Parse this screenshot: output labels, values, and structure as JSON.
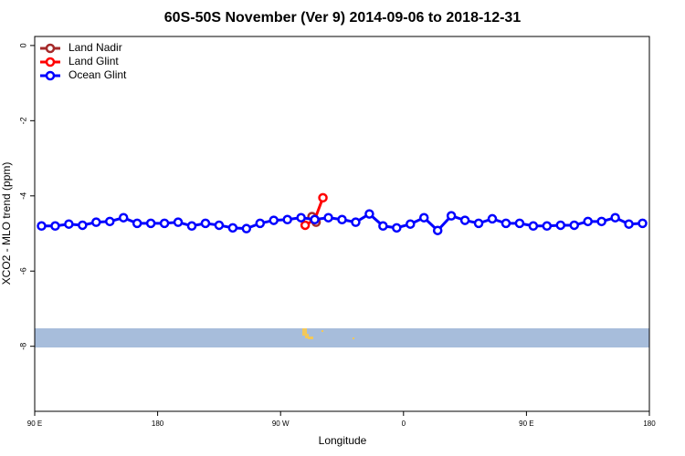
{
  "chart_data": {
    "type": "line",
    "title": "60S-50S November (Ver 9)   2014-09-06 to 2018-12-31",
    "xlabel": "Longitude",
    "ylabel": "XCO2 - MLO trend (ppm)",
    "xlim": [
      90,
      540
    ],
    "ylim": [
      -9.73,
      0.24
    ],
    "xticks": [
      {
        "value": 90,
        "label": "90 E"
      },
      180,
      {
        "value": 270,
        "label": "90 W"
      },
      {
        "value": 360,
        "label": "0"
      },
      {
        "value": 450,
        "label": "90 E"
      },
      {
        "value": 540,
        "label": "180"
      }
    ],
    "yticks": [
      0,
      -2,
      -4,
      -6,
      -8
    ],
    "legend": "top-left",
    "series": [
      {
        "name": "Land Nadir",
        "color": "#a52a2a",
        "x": [
          293,
          296
        ],
        "values": [
          -4.55,
          -4.7
        ]
      },
      {
        "name": "Land Glint",
        "color": "#ff0000",
        "x": [
          288,
          295,
          301
        ],
        "values": [
          -4.78,
          -4.63,
          -4.05
        ]
      },
      {
        "name": "Ocean Glint",
        "color": "#0000ff",
        "x": [
          95,
          105,
          115,
          125,
          135,
          145,
          155,
          165,
          175,
          185,
          195,
          205,
          215,
          225,
          235,
          245,
          255,
          265,
          275,
          285,
          295,
          305,
          315,
          325,
          335,
          345,
          355,
          365,
          375,
          385,
          395,
          405,
          415,
          425,
          435,
          445,
          455,
          465,
          475,
          485,
          495,
          505,
          515,
          525,
          535
        ],
        "values": [
          -4.8,
          -4.8,
          -4.75,
          -4.78,
          -4.7,
          -4.68,
          -4.58,
          -4.73,
          -4.73,
          -4.73,
          -4.7,
          -4.8,
          -4.73,
          -4.78,
          -4.85,
          -4.87,
          -4.73,
          -4.65,
          -4.63,
          -4.58,
          -4.63,
          -4.58,
          -4.63,
          -4.7,
          -4.48,
          -4.8,
          -4.85,
          -4.75,
          -4.58,
          -4.92,
          -4.53,
          -4.65,
          -4.73,
          -4.61,
          -4.73,
          -4.73,
          -4.8,
          -4.8,
          -4.78,
          -4.78,
          -4.68,
          -4.68,
          -4.58,
          -4.75,
          -4.73
        ]
      }
    ]
  }
}
